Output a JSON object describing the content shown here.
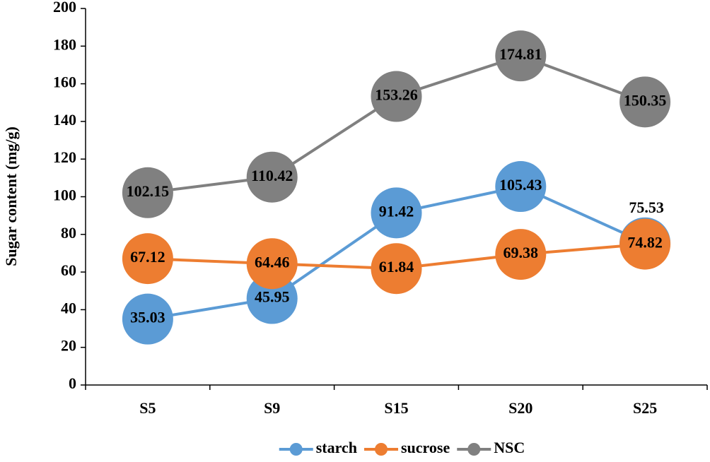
{
  "chart_data": {
    "type": "line",
    "y_label": "Sugar content (mg/g)",
    "categories": [
      "S5",
      "S9",
      "S15",
      "S20",
      "S25"
    ],
    "series": [
      {
        "name": "starch",
        "color": "#5b9bd5",
        "values": [
          35.03,
          45.95,
          91.42,
          105.43,
          75.53
        ]
      },
      {
        "name": "sucrose",
        "color": "#ed7d31",
        "values": [
          67.12,
          64.46,
          61.84,
          69.38,
          74.82
        ]
      },
      {
        "name": "NSC",
        "color": "#808080",
        "values": [
          102.15,
          110.42,
          153.26,
          174.81,
          150.35
        ]
      }
    ],
    "ylim": [
      0,
      200
    ],
    "yticks": [
      0,
      20,
      40,
      60,
      80,
      100,
      120,
      140,
      160,
      180,
      200
    ],
    "legend": "bottom"
  }
}
